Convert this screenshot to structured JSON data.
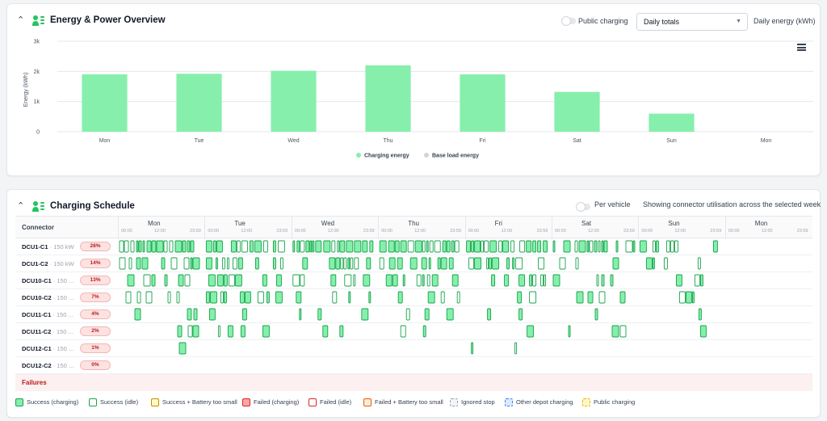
{
  "energy_card": {
    "title": "Energy & Power Overview",
    "public_charging_label": "Public charging",
    "view_select_value": "Daily totals",
    "unit_label": "Daily energy (kWh)"
  },
  "chart_data": {
    "type": "bar",
    "categories": [
      "Mon",
      "Tue",
      "Wed",
      "Thu",
      "Fri",
      "Sat",
      "Sun",
      "Mon"
    ],
    "series": [
      {
        "name": "Charging energy",
        "values": [
          1900,
          1920,
          2020,
          2200,
          1900,
          1320,
          600,
          0
        ],
        "color": "#86efac"
      },
      {
        "name": "Base load energy",
        "values": [
          0,
          0,
          0,
          0,
          0,
          0,
          0,
          0
        ],
        "color": "#d1d5db"
      }
    ],
    "ylabel": "Energy (kWh)",
    "xlabel": "",
    "ylim": [
      0,
      3000
    ],
    "yticks": [
      0,
      1000,
      2000,
      3000
    ],
    "ytick_labels": [
      "0",
      "1k",
      "2k",
      "3k"
    ],
    "grid": true,
    "legend": "bottom-center"
  },
  "schedule_card": {
    "title": "Charging Schedule",
    "per_vehicle_label": "Per vehicle",
    "subtitle": "Showing connector utilisation across the selected week",
    "connector_header": "Connector",
    "days": [
      "Mon",
      "Tue",
      "Wed",
      "Thu",
      "Fri",
      "Sat",
      "Sun",
      "Mon"
    ],
    "time_ticks": [
      "00:00",
      "12:00",
      "23:59"
    ],
    "connectors": [
      {
        "name": "DCU1-C1",
        "power": "· 150 kW",
        "utilisation": "28%"
      },
      {
        "name": "DCU1-C2",
        "power": "· 150 kW",
        "utilisation": "14%"
      },
      {
        "name": "DCU10-C1",
        "power": "· 150 ...",
        "utilisation": "13%"
      },
      {
        "name": "DCU10-C2",
        "power": "· 150 ...",
        "utilisation": "7%"
      },
      {
        "name": "DCU11-C1",
        "power": "· 150 ...",
        "utilisation": "4%"
      },
      {
        "name": "DCU11-C2",
        "power": "· 150 ...",
        "utilisation": "2%"
      },
      {
        "name": "DCU12-C1",
        "power": "· 150 ...",
        "utilisation": "1%"
      },
      {
        "name": "DCU12-C2",
        "power": "· 150 ...",
        "utilisation": "0%"
      }
    ],
    "failures_label": "Failures",
    "legend": [
      {
        "label": "Success (charging)",
        "fill": "#86efac",
        "border": "#16a34a",
        "style": "solid"
      },
      {
        "label": "Success (idle)",
        "fill": "#ffffff",
        "border": "#16a34a",
        "style": "solid"
      },
      {
        "label": "Success + Battery too small",
        "fill": "#fef9c3",
        "border": "#ca8a04",
        "style": "solid"
      },
      {
        "label": "Failed (charging)",
        "fill": "#fca5a5",
        "border": "#dc2626",
        "style": "solid"
      },
      {
        "label": "Failed (idle)",
        "fill": "#ffffff",
        "border": "#dc2626",
        "style": "solid"
      },
      {
        "label": "Failed + Battery too small",
        "fill": "#ffedd5",
        "border": "#ea580c",
        "style": "solid"
      },
      {
        "label": "Ignored stop",
        "fill": "#f3f4f6",
        "border": "#9ca3af",
        "style": "dashed"
      },
      {
        "label": "Other depot charging",
        "fill": "#dbeafe",
        "border": "#3b82f6",
        "style": "dashed"
      },
      {
        "label": "Public charging",
        "fill": "#fef9c3",
        "border": "#eab308",
        "style": "dashed"
      }
    ]
  }
}
